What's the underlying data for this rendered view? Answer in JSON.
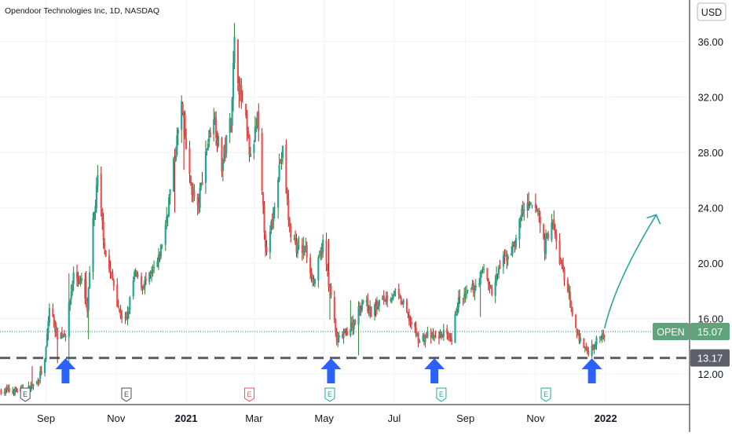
{
  "header": {
    "title": "Opendoor Technologies Inc, 1D, NASDAQ",
    "currency": "USD"
  },
  "colors": {
    "up": "#26a69a",
    "down": "#ef5350",
    "upWick": "#2e7d32",
    "downWick": "#b71c1c",
    "arrow": "#2962ff",
    "support": "#5d606b",
    "priceLine": "#089981",
    "openTag": "#5fa47a",
    "forecast": "#26a69a"
  },
  "price_tags": {
    "current": {
      "label": "OPEN",
      "value": "15.07"
    },
    "support": {
      "value": "13.17"
    }
  },
  "earnings_markers": [
    {
      "letter": "E",
      "date": "2020-08-14",
      "style": "gray"
    },
    {
      "letter": "E",
      "date": "2020-11-10",
      "style": "gray"
    },
    {
      "letter": "E",
      "date": "2021-02-25",
      "style": "red"
    },
    {
      "letter": "E",
      "date": "2021-05-06",
      "style": "green"
    },
    {
      "letter": "E",
      "date": "2021-08-11",
      "style": "green"
    },
    {
      "letter": "E",
      "date": "2021-11-10",
      "style": "green"
    }
  ],
  "arrow_dates": [
    "2020-09-18",
    "2021-05-07",
    "2021-08-05",
    "2021-12-20"
  ],
  "forecast_line": {
    "from": {
      "date": "2021-12-31",
      "price": 15.3
    },
    "to": {
      "date": "2022-02-14",
      "price": 23.5
    }
  },
  "chart_data": {
    "type": "candlestick",
    "title": "Opendoor Technologies Inc, 1D, NASDAQ",
    "ylim": [
      9.8,
      39.0
    ],
    "y_ticks": [
      "12.00",
      "16.00",
      "20.00",
      "24.00",
      "28.00",
      "32.00",
      "36.00"
    ],
    "x_ticks": [
      {
        "label": "Sep",
        "date": "2020-09-01",
        "bold": false
      },
      {
        "label": "Nov",
        "date": "2020-11-01",
        "bold": false
      },
      {
        "label": "2021",
        "date": "2021-01-01",
        "bold": true
      },
      {
        "label": "Mar",
        "date": "2021-03-01",
        "bold": false
      },
      {
        "label": "May",
        "date": "2021-05-01",
        "bold": false
      },
      {
        "label": "Jul",
        "date": "2021-07-01",
        "bold": false
      },
      {
        "label": "Sep",
        "date": "2021-09-01",
        "bold": false
      },
      {
        "label": "Nov",
        "date": "2021-11-01",
        "bold": false
      },
      {
        "label": "2022",
        "date": "2022-01-01",
        "bold": true
      }
    ],
    "xlim": [
      "2020-07-23",
      "2022-03-15"
    ],
    "support_level": 13.17,
    "last_price": 15.07,
    "price_anchors": [
      [
        "2020-07-24",
        10.8
      ],
      [
        "2020-08-14",
        10.8
      ],
      [
        "2020-08-24",
        11.4
      ],
      [
        "2020-08-31",
        12.8
      ],
      [
        "2020-09-04",
        16.8
      ],
      [
        "2020-09-11",
        14.8
      ],
      [
        "2020-09-18",
        15.0
      ],
      [
        "2020-09-25",
        19.2
      ],
      [
        "2020-10-02",
        18.6
      ],
      [
        "2020-10-07",
        16.6
      ],
      [
        "2020-10-12",
        22.8
      ],
      [
        "2020-10-16",
        26.0
      ],
      [
        "2020-10-23",
        20.5
      ],
      [
        "2020-10-30",
        18.5
      ],
      [
        "2020-11-04",
        16.4
      ],
      [
        "2020-11-10",
        15.8
      ],
      [
        "2020-11-17",
        19.2
      ],
      [
        "2020-11-24",
        18.4
      ],
      [
        "2020-12-01",
        19.0
      ],
      [
        "2020-12-08",
        20.2
      ],
      [
        "2020-12-14",
        22.8
      ],
      [
        "2020-12-21",
        27.0
      ],
      [
        "2020-12-28",
        31.4
      ],
      [
        "2021-01-04",
        26.0
      ],
      [
        "2021-01-11",
        23.8
      ],
      [
        "2021-01-18",
        28.0
      ],
      [
        "2021-01-25",
        30.8
      ],
      [
        "2021-02-01",
        27.0
      ],
      [
        "2021-02-09",
        30.6
      ],
      [
        "2021-02-12",
        35.8
      ],
      [
        "2021-02-17",
        32.2
      ],
      [
        "2021-02-22",
        30.0
      ],
      [
        "2021-02-26",
        27.4
      ],
      [
        "2021-03-04",
        30.4
      ],
      [
        "2021-03-08",
        24.8
      ],
      [
        "2021-03-12",
        20.4
      ],
      [
        "2021-03-17",
        23.2
      ],
      [
        "2021-03-22",
        26.6
      ],
      [
        "2021-03-26",
        28.0
      ],
      [
        "2021-04-01",
        22.4
      ],
      [
        "2021-04-08",
        21.0
      ],
      [
        "2021-04-15",
        21.0
      ],
      [
        "2021-04-22",
        18.6
      ],
      [
        "2021-04-30",
        21.4
      ],
      [
        "2021-05-07",
        17.6
      ],
      [
        "2021-05-12",
        14.4
      ],
      [
        "2021-05-19",
        14.9
      ],
      [
        "2021-05-26",
        15.6
      ],
      [
        "2021-06-04",
        17.4
      ],
      [
        "2021-06-11",
        16.4
      ],
      [
        "2021-06-18",
        17.2
      ],
      [
        "2021-06-25",
        17.6
      ],
      [
        "2021-07-02",
        17.8
      ],
      [
        "2021-07-09",
        17.0
      ],
      [
        "2021-07-16",
        15.6
      ],
      [
        "2021-07-23",
        14.4
      ],
      [
        "2021-07-30",
        14.8
      ],
      [
        "2021-08-06",
        14.6
      ],
      [
        "2021-08-13",
        15.0
      ],
      [
        "2021-08-20",
        14.2
      ],
      [
        "2021-08-25",
        17.2
      ],
      [
        "2021-09-01",
        17.6
      ],
      [
        "2021-09-10",
        18.4
      ],
      [
        "2021-09-17",
        19.6
      ],
      [
        "2021-09-24",
        17.8
      ],
      [
        "2021-10-01",
        19.8
      ],
      [
        "2021-10-08",
        20.6
      ],
      [
        "2021-10-15",
        21.6
      ],
      [
        "2021-10-20",
        23.8
      ],
      [
        "2021-10-27",
        24.0
      ],
      [
        "2021-11-03",
        23.8
      ],
      [
        "2021-11-09",
        21.2
      ],
      [
        "2021-11-15",
        23.2
      ],
      [
        "2021-11-22",
        20.2
      ],
      [
        "2021-11-29",
        18.2
      ],
      [
        "2021-12-03",
        16.0
      ],
      [
        "2021-12-10",
        14.4
      ],
      [
        "2021-12-16",
        13.6
      ],
      [
        "2021-12-21",
        14.0
      ],
      [
        "2021-12-28",
        14.8
      ],
      [
        "2021-12-31",
        15.07
      ]
    ]
  }
}
